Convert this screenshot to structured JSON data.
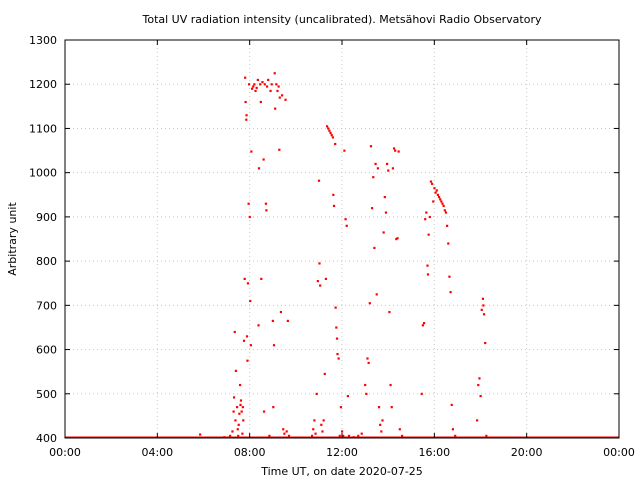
{
  "chart_data": {
    "type": "scatter",
    "title": "Total UV radiation intensity (uncalibrated). Metsähovi Radio Observatory",
    "xlabel": "Time UT, on date 2020-07-25",
    "ylabel": "Arbitrary unit",
    "xlim": [
      0,
      24
    ],
    "ylim": [
      400,
      1300
    ],
    "x_unit": "hours UT",
    "x_ticks": [
      {
        "value": 0,
        "label": "00:00"
      },
      {
        "value": 4,
        "label": "04:00"
      },
      {
        "value": 8,
        "label": "08:00"
      },
      {
        "value": 12,
        "label": "12:00"
      },
      {
        "value": 16,
        "label": "16:00"
      },
      {
        "value": 20,
        "label": "20:00"
      },
      {
        "value": 24,
        "label": "00:00"
      }
    ],
    "y_ticks": [
      400,
      500,
      600,
      700,
      800,
      900,
      1000,
      1100,
      1200,
      1300
    ],
    "grid": true,
    "marker_color": "#ff0000",
    "series": [
      {
        "baseline": {
          "value": 400,
          "x_from": 0.0,
          "x_to": 24.0
        },
        "points": [
          [
            5.85,
            408
          ],
          [
            6.9,
            402
          ],
          [
            7.15,
            405
          ],
          [
            7.25,
            415
          ],
          [
            7.3,
            460
          ],
          [
            7.32,
            492
          ],
          [
            7.35,
            640
          ],
          [
            7.38,
            440
          ],
          [
            7.4,
            552
          ],
          [
            7.45,
            470
          ],
          [
            7.48,
            420
          ],
          [
            7.5,
            405
          ],
          [
            7.52,
            430
          ],
          [
            7.55,
            455
          ],
          [
            7.58,
            520
          ],
          [
            7.6,
            475
          ],
          [
            7.62,
            485
          ],
          [
            7.65,
            460
          ],
          [
            7.68,
            410
          ],
          [
            7.7,
            470
          ],
          [
            7.72,
            440
          ],
          [
            7.75,
            620
          ],
          [
            7.78,
            760
          ],
          [
            7.8,
            1215
          ],
          [
            7.82,
            1160
          ],
          [
            7.85,
            1120
          ],
          [
            7.86,
            1130
          ],
          [
            7.88,
            630
          ],
          [
            7.9,
            575
          ],
          [
            7.92,
            750
          ],
          [
            7.95,
            930
          ],
          [
            7.97,
            1200
          ],
          [
            8.0,
            900
          ],
          [
            8.02,
            710
          ],
          [
            8.05,
            610
          ],
          [
            8.07,
            1048
          ],
          [
            8.1,
            1190
          ],
          [
            8.15,
            1195
          ],
          [
            8.2,
            1200
          ],
          [
            8.25,
            1185
          ],
          [
            8.3,
            1192
          ],
          [
            8.35,
            1210
          ],
          [
            8.38,
            655
          ],
          [
            8.4,
            1010
          ],
          [
            8.45,
            1200
          ],
          [
            8.48,
            1160
          ],
          [
            8.5,
            760
          ],
          [
            8.55,
            1205
          ],
          [
            8.6,
            1030
          ],
          [
            8.62,
            460
          ],
          [
            8.65,
            1200
          ],
          [
            8.7,
            930
          ],
          [
            8.72,
            915
          ],
          [
            8.75,
            1195
          ],
          [
            8.8,
            1210
          ],
          [
            8.85,
            405
          ],
          [
            8.9,
            1185
          ],
          [
            8.95,
            1200
          ],
          [
            9.0,
            665
          ],
          [
            9.02,
            470
          ],
          [
            9.05,
            610
          ],
          [
            9.08,
            1225
          ],
          [
            9.1,
            1145
          ],
          [
            9.15,
            1200
          ],
          [
            9.2,
            1185
          ],
          [
            9.25,
            1195
          ],
          [
            9.28,
            1052
          ],
          [
            9.3,
            1170
          ],
          [
            9.35,
            685
          ],
          [
            9.4,
            1175
          ],
          [
            9.45,
            420
          ],
          [
            9.5,
            410
          ],
          [
            9.55,
            1165
          ],
          [
            9.6,
            415
          ],
          [
            9.65,
            665
          ],
          [
            9.7,
            405
          ],
          [
            10.7,
            405
          ],
          [
            10.75,
            420
          ],
          [
            10.8,
            440
          ],
          [
            10.85,
            410
          ],
          [
            10.9,
            500
          ],
          [
            10.95,
            755
          ],
          [
            11.0,
            982
          ],
          [
            11.02,
            795
          ],
          [
            11.05,
            745
          ],
          [
            11.1,
            430
          ],
          [
            11.15,
            415
          ],
          [
            11.2,
            440
          ],
          [
            11.25,
            545
          ],
          [
            11.3,
            760
          ],
          [
            11.35,
            1105
          ],
          [
            11.4,
            1100
          ],
          [
            11.45,
            1095
          ],
          [
            11.5,
            1090
          ],
          [
            11.55,
            1085
          ],
          [
            11.6,
            1080
          ],
          [
            11.62,
            950
          ],
          [
            11.65,
            925
          ],
          [
            11.7,
            1065
          ],
          [
            11.72,
            695
          ],
          [
            11.75,
            650
          ],
          [
            11.78,
            625
          ],
          [
            11.8,
            590
          ],
          [
            11.85,
            580
          ],
          [
            11.9,
            405
          ],
          [
            11.95,
            470
          ],
          [
            12.0,
            415
          ],
          [
            12.05,
            405
          ],
          [
            12.1,
            1050
          ],
          [
            12.15,
            895
          ],
          [
            12.2,
            880
          ],
          [
            12.25,
            495
          ],
          [
            12.3,
            405
          ],
          [
            12.5,
            402
          ],
          [
            12.7,
            405
          ],
          [
            12.85,
            410
          ],
          [
            13.0,
            520
          ],
          [
            13.05,
            500
          ],
          [
            13.1,
            580
          ],
          [
            13.15,
            570
          ],
          [
            13.2,
            705
          ],
          [
            13.25,
            1060
          ],
          [
            13.3,
            920
          ],
          [
            13.35,
            990
          ],
          [
            13.4,
            830
          ],
          [
            13.45,
            1020
          ],
          [
            13.5,
            725
          ],
          [
            13.55,
            1010
          ],
          [
            13.6,
            470
          ],
          [
            13.65,
            430
          ],
          [
            13.7,
            415
          ],
          [
            13.75,
            440
          ],
          [
            13.8,
            865
          ],
          [
            13.85,
            945
          ],
          [
            13.9,
            910
          ],
          [
            13.95,
            1020
          ],
          [
            14.0,
            1005
          ],
          [
            14.05,
            685
          ],
          [
            14.1,
            520
          ],
          [
            14.15,
            470
          ],
          [
            14.2,
            1010
          ],
          [
            14.25,
            1055
          ],
          [
            14.3,
            1050
          ],
          [
            14.35,
            850
          ],
          [
            14.4,
            852
          ],
          [
            14.45,
            1048
          ],
          [
            14.5,
            420
          ],
          [
            14.6,
            405
          ],
          [
            15.45,
            500
          ],
          [
            15.5,
            655
          ],
          [
            15.55,
            660
          ],
          [
            15.6,
            895
          ],
          [
            15.65,
            910
          ],
          [
            15.7,
            790
          ],
          [
            15.72,
            770
          ],
          [
            15.75,
            860
          ],
          [
            15.8,
            900
          ],
          [
            15.85,
            980
          ],
          [
            15.9,
            975
          ],
          [
            15.95,
            935
          ],
          [
            16.0,
            965
          ],
          [
            16.05,
            955
          ],
          [
            16.1,
            960
          ],
          [
            16.15,
            950
          ],
          [
            16.2,
            945
          ],
          [
            16.25,
            940
          ],
          [
            16.3,
            935
          ],
          [
            16.35,
            930
          ],
          [
            16.4,
            925
          ],
          [
            16.45,
            915
          ],
          [
            16.5,
            910
          ],
          [
            16.55,
            880
          ],
          [
            16.6,
            840
          ],
          [
            16.65,
            765
          ],
          [
            16.7,
            730
          ],
          [
            16.75,
            475
          ],
          [
            16.8,
            420
          ],
          [
            16.9,
            405
          ],
          [
            17.85,
            440
          ],
          [
            17.9,
            520
          ],
          [
            17.95,
            535
          ],
          [
            18.0,
            495
          ],
          [
            18.05,
            690
          ],
          [
            18.1,
            715
          ],
          [
            18.12,
            700
          ],
          [
            18.15,
            680
          ],
          [
            18.2,
            615
          ],
          [
            18.25,
            405
          ]
        ]
      }
    ]
  }
}
